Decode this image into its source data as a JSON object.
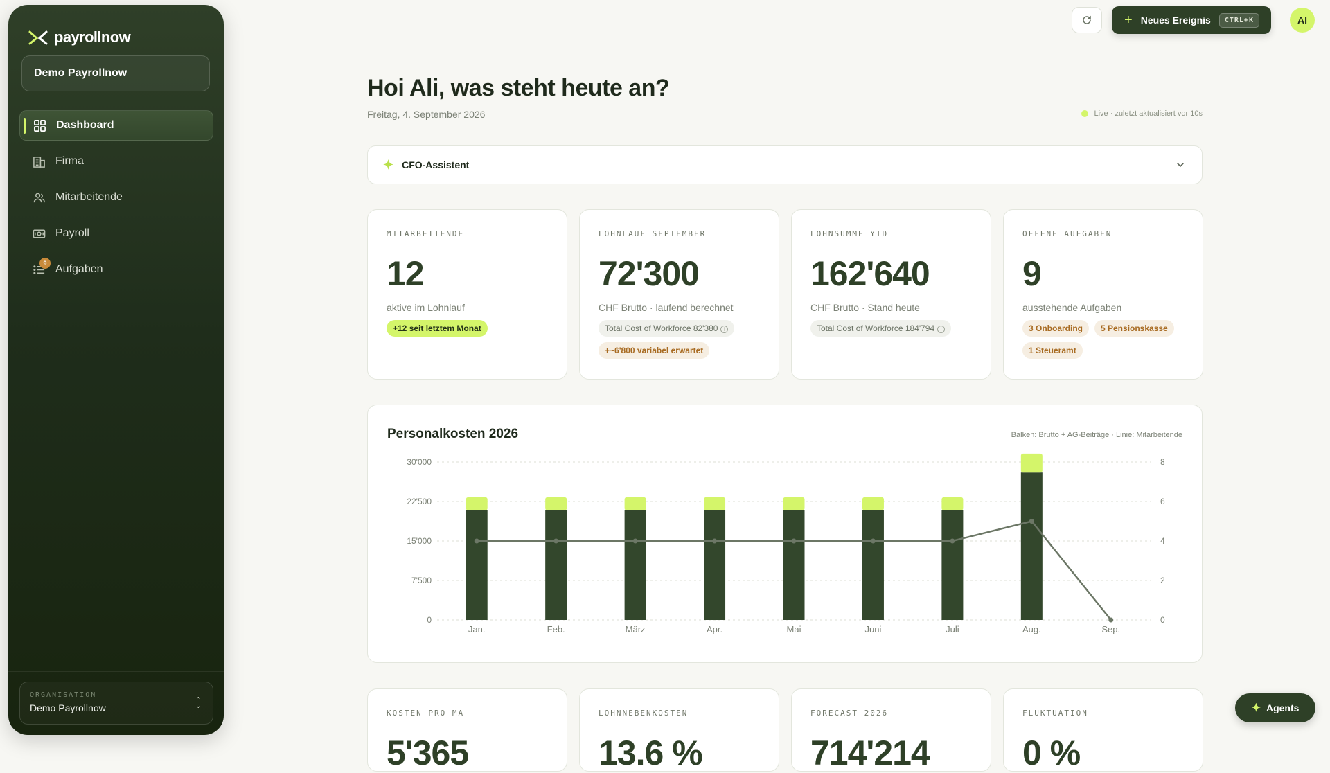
{
  "brand": {
    "name": "payrollnow"
  },
  "sidebar": {
    "org_selector": "Demo Payrollnow",
    "items": [
      {
        "label": "Dashboard",
        "icon": "grid-icon",
        "active": true
      },
      {
        "label": "Firma",
        "icon": "building-icon"
      },
      {
        "label": "Mitarbeitende",
        "icon": "users-icon"
      },
      {
        "label": "Payroll",
        "icon": "cash-icon"
      },
      {
        "label": "Aufgaben",
        "icon": "tasks-icon",
        "badge": "9"
      }
    ],
    "footer": {
      "label": "ORGANISATION",
      "name": "Demo Payrollnow"
    }
  },
  "topbar": {
    "new_event_label": "Neues Ereignis",
    "shortcut": "CTRL+K",
    "avatar_initials": "AI"
  },
  "header": {
    "greeting": "Hoi Ali, was steht heute an?",
    "date": "Freitag, 4. September 2026",
    "live_status": "Live · zuletzt aktualisiert vor 10s"
  },
  "cfo": {
    "label": "CFO-Assistent"
  },
  "kpis": [
    {
      "label": "MITARBEITENDE",
      "value": "12",
      "sub": "aktive im Lohnlauf",
      "pills": [
        "+12 seit letztem Monat"
      ]
    },
    {
      "label": "LOHNLAUF SEPTEMBER",
      "value": "72'300",
      "sub": "CHF Brutto · laufend berechnet",
      "pills": [
        "Total Cost of Workforce 82'380",
        "+~6'800 variabel erwartet"
      ]
    },
    {
      "label": "LOHNSUMME YTD",
      "value": "162'640",
      "sub": "CHF Brutto · Stand heute",
      "pills": [
        "Total Cost of Workforce 184'794"
      ]
    },
    {
      "label": "OFFENE AUFGABEN",
      "value": "9",
      "sub": "ausstehende Aufgaben",
      "pills": [
        "3 Onboarding",
        "5 Pensionskasse",
        "1 Steueramt"
      ]
    }
  ],
  "chart_data": {
    "type": "bar",
    "title": "Personalkosten 2026",
    "legend_text": "Balken: Brutto + AG-Beiträge · Linie: Mitarbeitende",
    "categories": [
      "Jan.",
      "Feb.",
      "März",
      "Apr.",
      "Mai",
      "Juni",
      "Juli",
      "Aug.",
      "Sep."
    ],
    "series": [
      {
        "name": "Brutto",
        "values": [
          20800,
          20800,
          20800,
          20800,
          20800,
          20800,
          20800,
          28000,
          0
        ],
        "color": "#33472c"
      },
      {
        "name": "AG-Beiträge",
        "values": [
          2500,
          2500,
          2500,
          2500,
          2500,
          2500,
          2500,
          3600,
          0
        ],
        "color": "#d4f56a"
      },
      {
        "name": "Mitarbeitende",
        "values": [
          4,
          4,
          4,
          4,
          4,
          4,
          4,
          5,
          0
        ],
        "color": "#6c7766",
        "axis": "right"
      }
    ],
    "y_ticks": [
      "0",
      "7'500",
      "15'000",
      "22'500",
      "30'000"
    ],
    "y2_ticks": [
      "0",
      "2",
      "4",
      "6",
      "8"
    ],
    "ylim": [
      0,
      30000
    ],
    "y2lim": [
      0,
      8
    ],
    "grid": true
  },
  "bottom_kpis": [
    {
      "label": "KOSTEN PRO MA",
      "value": "5'365"
    },
    {
      "label": "LOHNNEBENKOSTEN",
      "value": "13.6 %"
    },
    {
      "label": "FORECAST 2026",
      "value": "714'214"
    },
    {
      "label": "FLUKTUATION",
      "value": "0 %"
    }
  ],
  "agents": {
    "label": "Agents"
  }
}
